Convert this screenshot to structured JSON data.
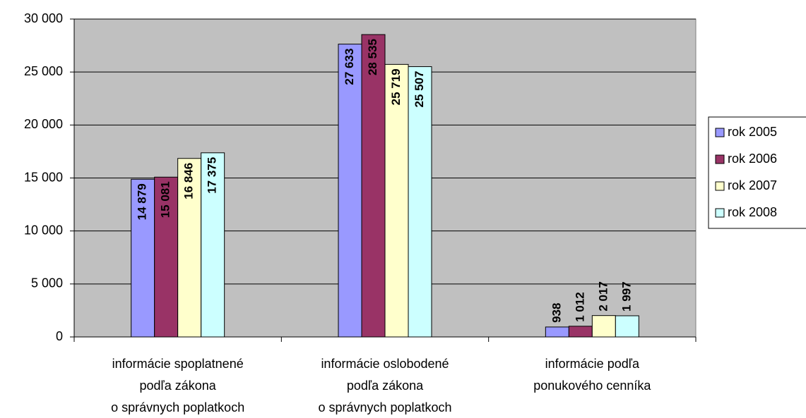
{
  "chart_data": {
    "type": "bar",
    "categories": [
      [
        "informácie spoplatnené",
        "podľa zákona",
        "o správnych poplatkoch"
      ],
      [
        "informácie oslobodené",
        "podľa zákona",
        "o správnych poplatkoch"
      ],
      [
        "informácie podľa",
        "ponukového cenníka"
      ]
    ],
    "series": [
      {
        "name": "rok 2005",
        "color": "#9999ff",
        "values": [
          14879,
          27633,
          938
        ],
        "value_labels": [
          "14 879",
          "27 633",
          "938"
        ]
      },
      {
        "name": "rok 2006",
        "color": "#993366",
        "values": [
          15081,
          28535,
          1012
        ],
        "value_labels": [
          "15 081",
          "28 535",
          "1 012"
        ]
      },
      {
        "name": "rok 2007",
        "color": "#ffffcc",
        "values": [
          16846,
          25719,
          2017
        ],
        "value_labels": [
          "16 846",
          "25 719",
          "2 017"
        ]
      },
      {
        "name": "rok 2008",
        "color": "#ccffff",
        "values": [
          17375,
          25507,
          1997
        ],
        "value_labels": [
          "17 375",
          "25 507",
          "1 997"
        ]
      }
    ],
    "ylim": [
      0,
      30000
    ],
    "yticks": [
      0,
      {
        "value": 5000,
        "label": "5 000"
      },
      {
        "value": 10000,
        "label": "10 000"
      },
      {
        "value": 15000,
        "label": "15 000"
      },
      {
        "value": 20000,
        "label": "20 000"
      },
      {
        "value": 25000,
        "label": "25 000"
      },
      {
        "value": 30000,
        "label": "30 000"
      }
    ],
    "grid": true,
    "legend": "right",
    "plot_background": "#c0c0c0"
  }
}
